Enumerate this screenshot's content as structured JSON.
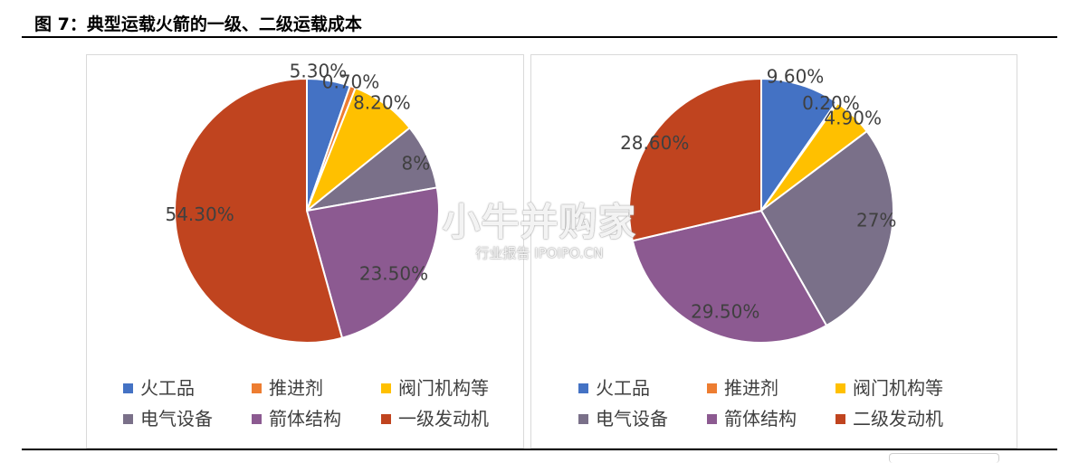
{
  "figure": {
    "title": "图 7：典型运载火箭的一级、二级运载成本"
  },
  "watermark": {
    "main": "小牛并购家",
    "sub": "行业报告 IPOIPO.CN"
  },
  "colors": {
    "火工品": "#4472C4",
    "推进剂": "#ED7D31",
    "阀门机构等": "#FFC000",
    "电气设备": "#7A7089",
    "箭体结构": "#8C5A91",
    "发动机": "#C0441F"
  },
  "chart_data": [
    {
      "type": "pie",
      "title": "",
      "categories": [
        "火工品",
        "推进剂",
        "阀门机构等",
        "电气设备",
        "箭体结构",
        "一级发动机"
      ],
      "values": [
        5.3,
        0.7,
        8.2,
        8.0,
        23.5,
        54.3
      ],
      "labels": [
        "5.30%",
        "0.70%",
        "8.20%",
        "8%",
        "23.50%",
        "54.30%"
      ],
      "unit": "%",
      "legend_position": "bottom"
    },
    {
      "type": "pie",
      "title": "",
      "categories": [
        "火工品",
        "推进剂",
        "阀门机构等",
        "电气设备",
        "箭体结构",
        "二级发动机"
      ],
      "values": [
        9.6,
        0.2,
        4.9,
        27.0,
        29.5,
        28.6
      ],
      "labels": [
        "9.60%",
        "0.20%",
        "4.90%",
        "27%",
        "29.50%",
        "28.60%"
      ],
      "unit": "%",
      "legend_position": "bottom"
    }
  ]
}
